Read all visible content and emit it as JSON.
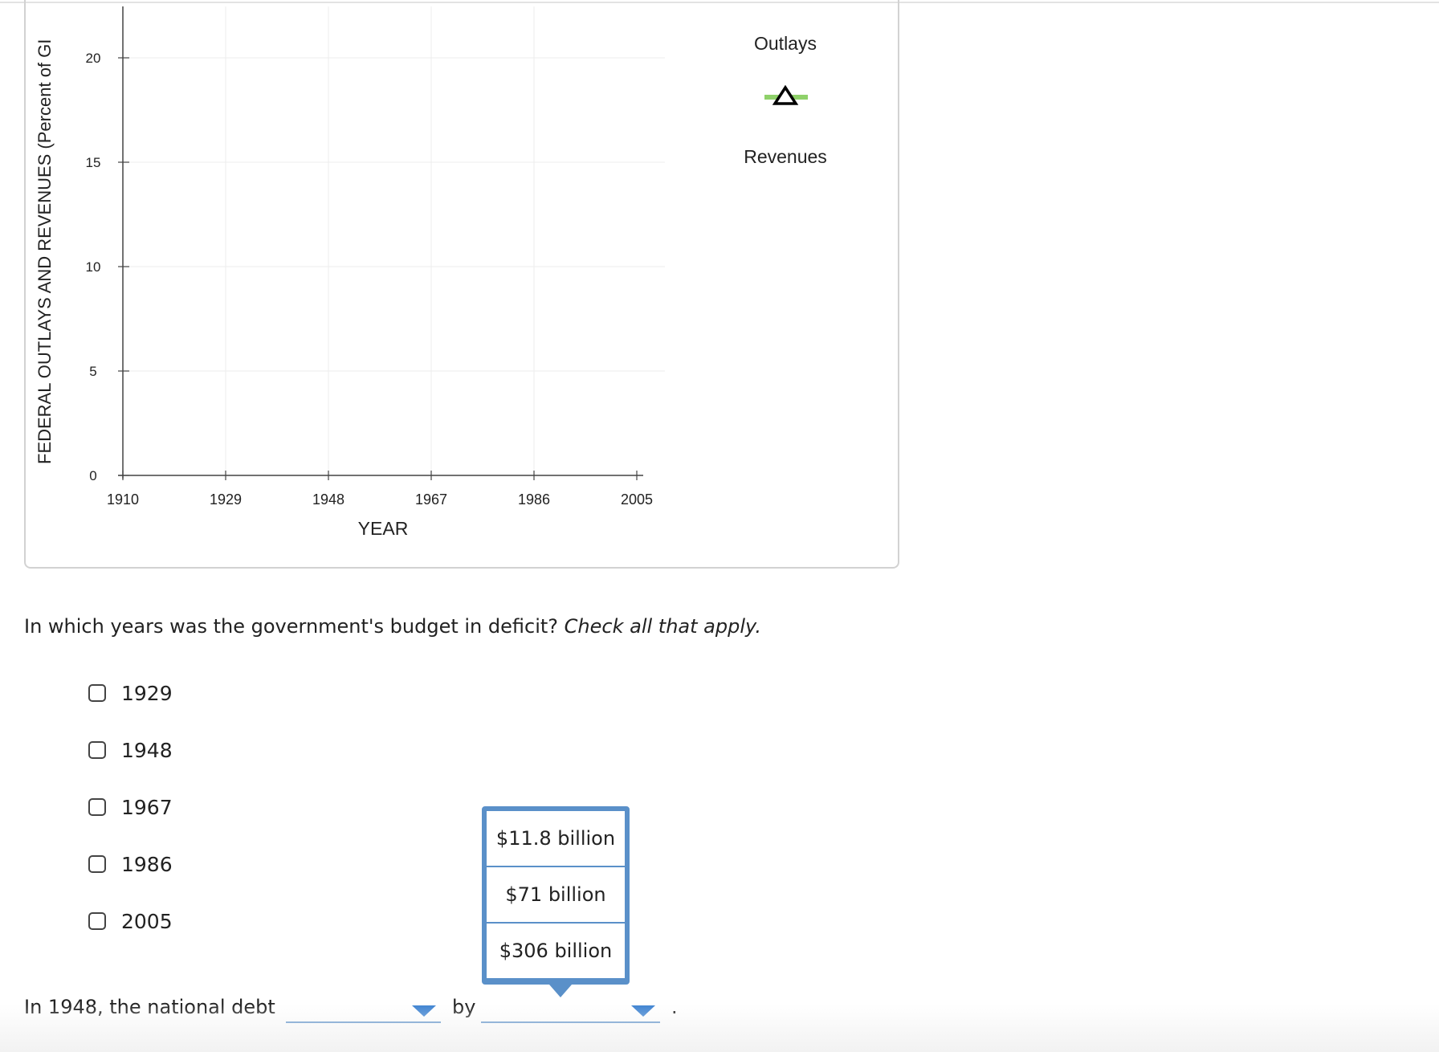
{
  "chart_data": {
    "type": "line",
    "xlabel": "YEAR",
    "ylabel": "FEDERAL OUTLAYS AND REVENUES (Percent of GI",
    "x_ticks": [
      "1910",
      "1929",
      "1948",
      "1967",
      "1986",
      "2005"
    ],
    "y_ticks": [
      "0",
      "5",
      "10",
      "15",
      "20"
    ],
    "xlim": [
      1910,
      2005
    ],
    "ylim": [
      0,
      22
    ],
    "grid": true,
    "legend": [
      {
        "label": "Outlays",
        "color": "#8fd16a",
        "marker": "line"
      },
      {
        "label": "Revenues",
        "color": "#000000",
        "marker": "triangle"
      }
    ],
    "series": [
      {
        "name": "Outlays",
        "x": [],
        "y": []
      },
      {
        "name": "Revenues",
        "x": [],
        "y": []
      }
    ]
  },
  "question": {
    "text": "In which years was the government's budget in deficit?",
    "hint": "Check all that apply."
  },
  "options": [
    "1929",
    "1948",
    "1967",
    "1986",
    "2005"
  ],
  "sentence": {
    "prefix": "In 1948, the national debt",
    "by": "by",
    "period": "."
  },
  "popup_options": [
    "$11.8 billion",
    "$71 billion",
    "$306 billion"
  ]
}
